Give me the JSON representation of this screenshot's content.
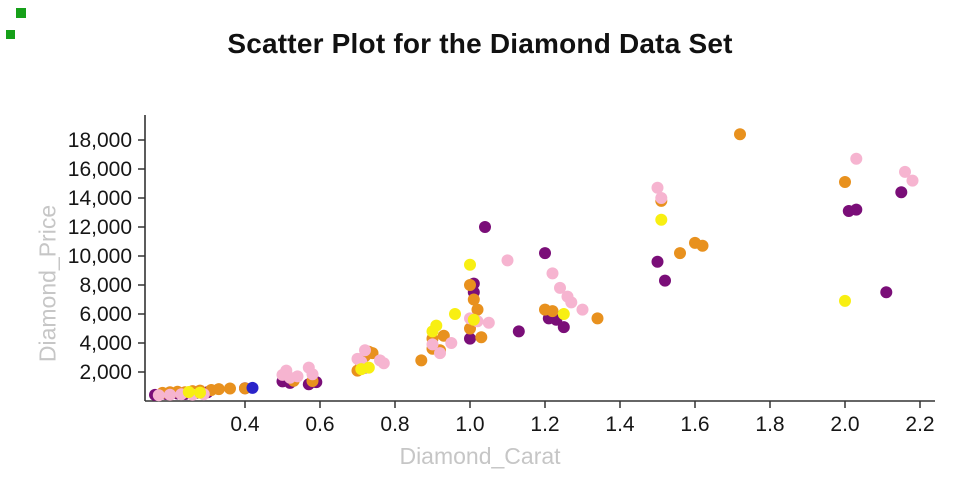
{
  "chart": {
    "title": "Scatter Plot for the Diamond Data Set",
    "xlabel": "Diamond_Carat",
    "ylabel": "Diamond_Price"
  },
  "decorations": {
    "green_marker_color": "#16a019"
  },
  "chart_data": {
    "type": "scatter",
    "title": "Scatter Plot for the Diamond Data Set",
    "xlabel": "Diamond_Carat",
    "ylabel": "Diamond_Price",
    "grid": false,
    "legend": "none",
    "xlim": [
      0.13,
      2.34
    ],
    "ylim": [
      0,
      18600
    ],
    "x_ticks": {
      "values": [
        0.4,
        0.6,
        0.8,
        1.0,
        1.2,
        1.4,
        1.6,
        1.8,
        2.0,
        2.2
      ],
      "labels": [
        "0.4",
        "0.6",
        "0.8",
        "1.0",
        "1.2",
        "1.4",
        "1.6",
        "1.8",
        "2.0",
        "2.2"
      ]
    },
    "y_ticks": {
      "values": [
        2000,
        4000,
        6000,
        8000,
        10000,
        12000,
        14000,
        16000,
        18000
      ],
      "labels": [
        "2,000",
        "4,000",
        "6,000",
        "8,000",
        "10,000",
        "12,000",
        "14,000",
        "16,000",
        "18,000"
      ]
    },
    "series": [
      {
        "name": "dark-purple",
        "color": "#7a0e78",
        "points": [
          [
            0.16,
            420
          ],
          [
            0.19,
            480
          ],
          [
            0.22,
            520
          ],
          [
            0.24,
            480
          ],
          [
            0.27,
            560
          ],
          [
            0.3,
            600
          ],
          [
            0.4,
            880
          ],
          [
            0.5,
            1350
          ],
          [
            0.52,
            1250
          ],
          [
            0.57,
            1150
          ],
          [
            0.59,
            1300
          ],
          [
            0.72,
            2300
          ],
          [
            1.0,
            4300
          ],
          [
            1.01,
            7500
          ],
          [
            1.01,
            8100
          ],
          [
            1.04,
            12000
          ],
          [
            1.13,
            4800
          ],
          [
            1.2,
            10200
          ],
          [
            1.21,
            5700
          ],
          [
            1.23,
            5600
          ],
          [
            1.25,
            5100
          ],
          [
            1.5,
            9600
          ],
          [
            1.52,
            8300
          ],
          [
            2.01,
            13100
          ],
          [
            2.03,
            13200
          ],
          [
            2.11,
            7500
          ],
          [
            2.15,
            14400
          ]
        ]
      },
      {
        "name": "orange",
        "color": "#e8911e",
        "points": [
          [
            0.18,
            560
          ],
          [
            0.2,
            600
          ],
          [
            0.22,
            640
          ],
          [
            0.24,
            600
          ],
          [
            0.26,
            680
          ],
          [
            0.28,
            720
          ],
          [
            0.31,
            760
          ],
          [
            0.33,
            820
          ],
          [
            0.36,
            860
          ],
          [
            0.4,
            870
          ],
          [
            0.53,
            1400
          ],
          [
            0.58,
            1380
          ],
          [
            0.7,
            2100
          ],
          [
            0.71,
            2500
          ],
          [
            0.72,
            3100
          ],
          [
            0.73,
            3400
          ],
          [
            0.74,
            3300
          ],
          [
            0.87,
            2800
          ],
          [
            0.9,
            3600
          ],
          [
            0.9,
            4300
          ],
          [
            0.92,
            3500
          ],
          [
            0.93,
            4500
          ],
          [
            1.0,
            5000
          ],
          [
            1.0,
            8000
          ],
          [
            1.01,
            7000
          ],
          [
            1.02,
            6300
          ],
          [
            1.03,
            4400
          ],
          [
            1.2,
            6300
          ],
          [
            1.22,
            6200
          ],
          [
            1.34,
            5700
          ],
          [
            1.51,
            13800
          ],
          [
            1.56,
            10200
          ],
          [
            1.6,
            10900
          ],
          [
            1.62,
            10700
          ],
          [
            1.72,
            18400
          ],
          [
            2.0,
            15100
          ]
        ]
      },
      {
        "name": "pink",
        "color": "#f6b4d0",
        "points": [
          [
            0.17,
            400
          ],
          [
            0.2,
            430
          ],
          [
            0.23,
            470
          ],
          [
            0.26,
            430
          ],
          [
            0.29,
            470
          ],
          [
            0.5,
            1800
          ],
          [
            0.51,
            2100
          ],
          [
            0.52,
            1600
          ],
          [
            0.54,
            1700
          ],
          [
            0.57,
            2300
          ],
          [
            0.58,
            1850
          ],
          [
            0.7,
            2900
          ],
          [
            0.71,
            2700
          ],
          [
            0.72,
            3500
          ],
          [
            0.76,
            2800
          ],
          [
            0.77,
            2600
          ],
          [
            0.9,
            3900
          ],
          [
            0.92,
            3300
          ],
          [
            0.95,
            4000
          ],
          [
            1.0,
            5700
          ],
          [
            1.02,
            5500
          ],
          [
            1.05,
            5400
          ],
          [
            1.1,
            9700
          ],
          [
            1.22,
            8800
          ],
          [
            1.24,
            7800
          ],
          [
            1.26,
            7200
          ],
          [
            1.27,
            6800
          ],
          [
            1.3,
            6300
          ],
          [
            1.5,
            14700
          ],
          [
            1.51,
            14000
          ],
          [
            2.03,
            16700
          ],
          [
            2.16,
            15800
          ],
          [
            2.18,
            15200
          ]
        ]
      },
      {
        "name": "yellow",
        "color": "#f8ef12",
        "points": [
          [
            0.25,
            620
          ],
          [
            0.28,
            580
          ],
          [
            0.71,
            2200
          ],
          [
            0.73,
            2300
          ],
          [
            0.9,
            4800
          ],
          [
            0.91,
            5200
          ],
          [
            0.96,
            6000
          ],
          [
            1.0,
            9400
          ],
          [
            1.01,
            5600
          ],
          [
            1.25,
            6000
          ],
          [
            1.51,
            12500
          ],
          [
            2.0,
            6900
          ]
        ]
      },
      {
        "name": "blue",
        "color": "#2a23c9",
        "points": [
          [
            0.42,
            900
          ]
        ]
      }
    ]
  }
}
